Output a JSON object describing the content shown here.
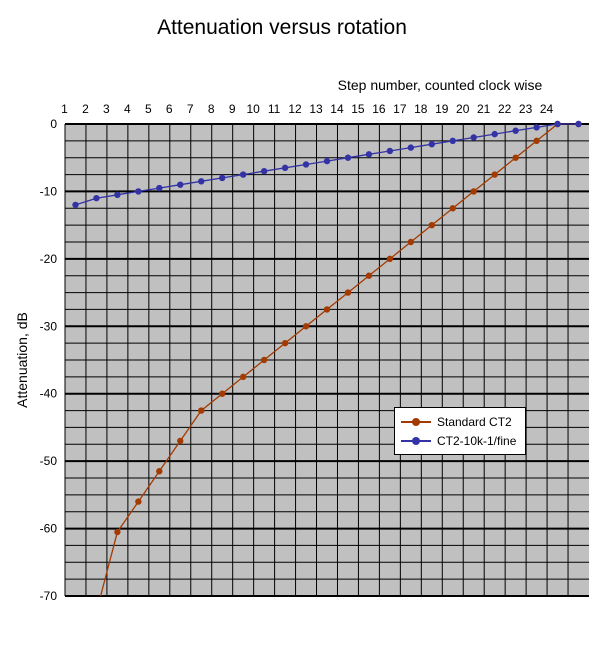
{
  "chart_data": {
    "type": "line",
    "title": "Attenuation versus rotation",
    "xlabel": "Step number, counted clock wise",
    "ylabel": "Attenuation, dB",
    "x_ticks": [
      1,
      2,
      3,
      4,
      5,
      6,
      7,
      8,
      9,
      10,
      11,
      12,
      13,
      14,
      15,
      16,
      17,
      18,
      19,
      20,
      21,
      22,
      23,
      24
    ],
    "y_ticks": [
      0,
      -10,
      -20,
      -30,
      -40,
      -50,
      -60,
      -70
    ],
    "xlim": [
      0.5,
      25.5
    ],
    "ylim": [
      -70,
      0
    ],
    "grid": true,
    "x_axis_position": "top",
    "legend_position": "lower-right",
    "background_color": "#c0c0c0",
    "series": [
      {
        "name": "Standard CT2",
        "color": "#a33a00",
        "x": [
          2.2,
          3,
          4,
          5,
          6,
          7,
          8,
          9,
          10,
          11,
          12,
          13,
          14,
          15,
          16,
          17,
          18,
          19,
          20,
          21,
          22,
          23,
          24,
          25
        ],
        "y": [
          -70,
          -60.5,
          -56,
          -51.5,
          -47,
          -42.5,
          -40,
          -37.5,
          -35,
          -32.5,
          -30,
          -27.5,
          -25,
          -22.5,
          -20,
          -17.5,
          -15,
          -12.5,
          -10,
          -7.5,
          -5,
          -2.5,
          0,
          0
        ],
        "marker_from": 1
      },
      {
        "name": "CT2-10k-1/fine",
        "color": "#3333a6",
        "x": [
          1,
          2,
          3,
          4,
          5,
          6,
          7,
          8,
          9,
          10,
          11,
          12,
          13,
          14,
          15,
          16,
          17,
          18,
          19,
          20,
          21,
          22,
          23,
          24,
          25
        ],
        "y": [
          -12,
          -11,
          -10.5,
          -10,
          -9.5,
          -9,
          -8.5,
          -8,
          -7.5,
          -7,
          -6.5,
          -6,
          -5.5,
          -5,
          -4.5,
          -4,
          -3.5,
          -3,
          -2.5,
          -2,
          -1.5,
          -1,
          -0.5,
          0,
          0
        ],
        "marker_from": 0
      }
    ]
  }
}
